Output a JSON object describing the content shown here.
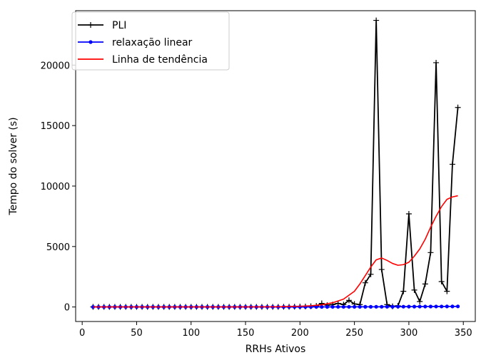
{
  "chart_data": {
    "type": "line",
    "xlabel": "RRHs Ativos",
    "ylabel": "Tempo do solver (s)",
    "xlim": [
      -6,
      361
    ],
    "ylim": [
      -1200,
      24500
    ],
    "xticks": [
      0,
      50,
      100,
      150,
      200,
      250,
      300,
      350
    ],
    "yticks": [
      0,
      5000,
      10000,
      15000,
      20000
    ],
    "legend_position": "top-left",
    "grid": false,
    "series": [
      {
        "name": "PLI",
        "color": "#000000",
        "marker": "plus",
        "x": [
          10,
          15,
          20,
          25,
          30,
          35,
          40,
          45,
          50,
          55,
          60,
          65,
          70,
          75,
          80,
          85,
          90,
          95,
          100,
          105,
          110,
          115,
          120,
          125,
          130,
          135,
          140,
          145,
          150,
          155,
          160,
          165,
          170,
          175,
          180,
          185,
          190,
          195,
          200,
          205,
          210,
          215,
          220,
          225,
          230,
          235,
          240,
          245,
          250,
          255,
          260,
          265,
          270,
          275,
          280,
          285,
          290,
          295,
          300,
          305,
          310,
          315,
          320,
          325,
          330,
          335,
          340,
          345
        ],
        "y": [
          5,
          5,
          5,
          5,
          5,
          5,
          5,
          5,
          5,
          5,
          5,
          5,
          5,
          5,
          5,
          5,
          5,
          5,
          5,
          5,
          5,
          5,
          5,
          5,
          5,
          5,
          5,
          5,
          5,
          5,
          5,
          5,
          8,
          10,
          12,
          15,
          18,
          22,
          30,
          40,
          60,
          90,
          300,
          150,
          200,
          300,
          200,
          550,
          250,
          200,
          2000,
          2700,
          23700,
          3100,
          200,
          50,
          100,
          1300,
          7700,
          1400,
          450,
          1900,
          4500,
          20200,
          2100,
          1300,
          11800,
          16500
        ]
      },
      {
        "name": "relaxação linear",
        "color": "#0000ff",
        "marker": "dot",
        "x": [
          10,
          15,
          20,
          25,
          30,
          35,
          40,
          45,
          50,
          55,
          60,
          65,
          70,
          75,
          80,
          85,
          90,
          95,
          100,
          105,
          110,
          115,
          120,
          125,
          130,
          135,
          140,
          145,
          150,
          155,
          160,
          165,
          170,
          175,
          180,
          185,
          190,
          195,
          200,
          205,
          210,
          215,
          220,
          225,
          230,
          235,
          240,
          245,
          250,
          255,
          260,
          265,
          270,
          275,
          280,
          285,
          290,
          295,
          300,
          305,
          310,
          315,
          320,
          325,
          330,
          335,
          340,
          345
        ],
        "y": [
          1,
          1,
          1,
          1,
          1,
          1,
          1,
          1,
          1,
          1,
          1,
          1,
          1,
          1,
          1,
          1,
          1,
          1,
          1,
          1,
          1,
          1,
          1,
          1,
          1,
          1,
          1,
          2,
          2,
          2,
          2,
          3,
          3,
          3,
          4,
          4,
          5,
          5,
          6,
          6,
          7,
          8,
          8,
          9,
          10,
          11,
          12,
          13,
          14,
          15,
          16,
          17,
          18,
          20,
          22,
          24,
          26,
          28,
          30,
          32,
          34,
          36,
          38,
          40,
          42,
          44,
          46,
          48
        ]
      },
      {
        "name": "Linha de tendência",
        "color": "#ff0000",
        "marker": "none",
        "x": [
          10,
          30,
          50,
          70,
          90,
          110,
          130,
          150,
          170,
          180,
          190,
          200,
          210,
          220,
          230,
          240,
          250,
          255,
          260,
          265,
          270,
          275,
          280,
          285,
          290,
          295,
          300,
          305,
          310,
          315,
          320,
          325,
          330,
          335,
          340,
          345
        ],
        "y": [
          5,
          5,
          5,
          5,
          5,
          5,
          5,
          5,
          10,
          20,
          40,
          60,
          100,
          180,
          350,
          650,
          1300,
          1900,
          2600,
          3300,
          3900,
          4050,
          3850,
          3600,
          3450,
          3500,
          3700,
          4200,
          4800,
          5600,
          6600,
          7500,
          8300,
          8900,
          9100,
          9200
        ]
      }
    ]
  }
}
